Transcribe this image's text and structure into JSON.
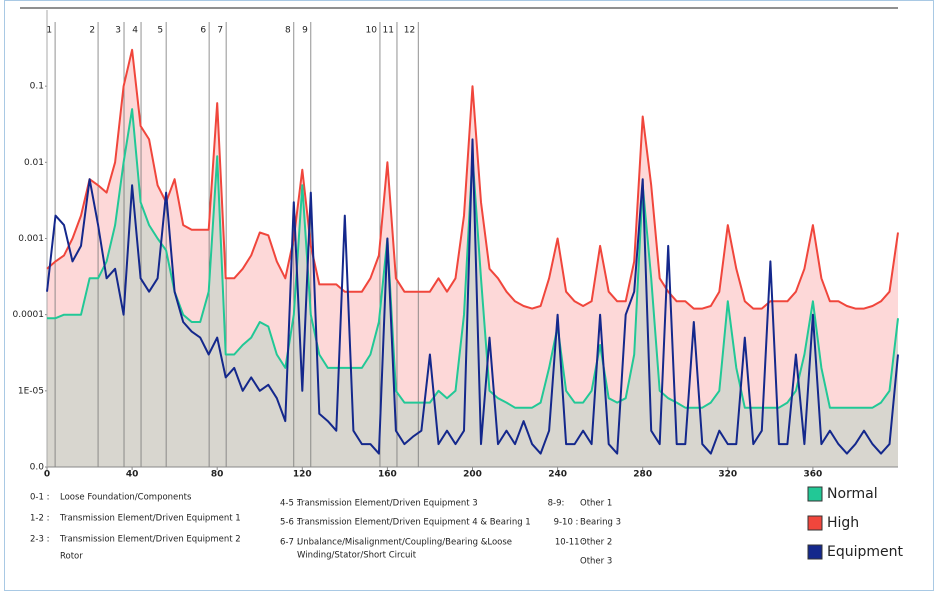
{
  "chart_data": {
    "type": "line",
    "log_y": true,
    "grid": false,
    "legend_position": "lower right",
    "x": [
      0,
      4,
      8,
      12,
      16,
      20,
      24,
      28,
      32,
      36,
      40,
      44,
      48,
      52,
      56,
      60,
      64,
      68,
      72,
      76,
      80,
      84,
      88,
      92,
      96,
      100,
      104,
      108,
      112,
      116,
      120,
      124,
      128,
      132,
      136,
      140,
      144,
      148,
      152,
      156,
      160,
      164,
      168,
      172,
      176,
      180,
      184,
      188,
      192,
      196,
      200,
      204,
      208,
      212,
      216,
      220,
      224,
      228,
      232,
      236,
      240,
      244,
      248,
      252,
      256,
      260,
      264,
      268,
      272,
      276,
      280,
      284,
      288,
      292,
      296,
      300,
      304,
      308,
      312,
      316,
      320,
      324,
      328,
      332,
      336,
      340,
      344,
      348,
      352,
      356,
      360,
      364,
      368,
      372,
      376,
      380,
      384,
      388,
      392,
      396,
      400
    ],
    "xlim": [
      0,
      400
    ],
    "xticks": [
      0,
      40,
      80,
      120,
      160,
      200,
      240,
      280,
      320,
      360
    ],
    "ylim": [
      1e-06,
      1
    ],
    "yticks": [
      {
        "value": 1e-06,
        "label": "0.0"
      },
      {
        "value": 1e-05,
        "label": "1E-05"
      },
      0.0001,
      0.001,
      0.01,
      0.1
    ],
    "series": [
      {
        "name": "High",
        "color": "#f0463c",
        "fill": "#fdd8d8",
        "values": [
          0.0004,
          0.0005,
          0.0006,
          0.001,
          0.002,
          0.006,
          0.005,
          0.004,
          0.01,
          0.1,
          0.3,
          0.03,
          0.02,
          0.005,
          0.003,
          0.006,
          0.0015,
          0.0013,
          0.0013,
          0.0013,
          0.06,
          0.0003,
          0.0003,
          0.0004,
          0.0006,
          0.0012,
          0.0011,
          0.0005,
          0.0003,
          0.001,
          0.008,
          0.0008,
          0.00025,
          0.00025,
          0.00025,
          0.0002,
          0.0002,
          0.0002,
          0.0003,
          0.0006,
          0.01,
          0.0003,
          0.0002,
          0.0002,
          0.0002,
          0.0002,
          0.0003,
          0.0002,
          0.0003,
          0.002,
          0.1,
          0.003,
          0.0004,
          0.0003,
          0.0002,
          0.00015,
          0.00013,
          0.00012,
          0.00013,
          0.0003,
          0.001,
          0.0002,
          0.00015,
          0.00013,
          0.00015,
          0.0008,
          0.0002,
          0.00015,
          0.00015,
          0.0005,
          0.04,
          0.005,
          0.0003,
          0.0002,
          0.00015,
          0.00015,
          0.00012,
          0.00012,
          0.00013,
          0.0002,
          0.0015,
          0.0004,
          0.00015,
          0.00012,
          0.00012,
          0.00015,
          0.00015,
          0.00015,
          0.0002,
          0.0004,
          0.0015,
          0.0003,
          0.00015,
          0.00015,
          0.00013,
          0.00012,
          0.00012,
          0.00013,
          0.00015,
          0.0002,
          0.0012
        ]
      },
      {
        "name": "Normal",
        "color": "#22c896",
        "fill": "#d8d6cf",
        "values": [
          9e-05,
          9e-05,
          0.0001,
          0.0001,
          0.0001,
          0.0003,
          0.0003,
          0.0005,
          0.0015,
          0.01,
          0.05,
          0.003,
          0.0015,
          0.001,
          0.0007,
          0.0002,
          0.0001,
          8e-05,
          8e-05,
          0.0002,
          0.012,
          3e-05,
          3e-05,
          4e-05,
          5e-05,
          8e-05,
          7e-05,
          3e-05,
          2e-05,
          0.0001,
          0.005,
          0.0001,
          3e-05,
          2e-05,
          2e-05,
          2e-05,
          2e-05,
          2e-05,
          3e-05,
          8e-05,
          0.001,
          1e-05,
          7e-06,
          7e-06,
          7e-06,
          7e-06,
          1e-05,
          8e-06,
          1e-05,
          0.0001,
          0.012,
          0.0003,
          1e-05,
          8e-06,
          7e-06,
          6e-06,
          6e-06,
          6e-06,
          7e-06,
          2e-05,
          7e-05,
          1e-05,
          7e-06,
          7e-06,
          1e-05,
          4e-05,
          8e-06,
          7e-06,
          8e-06,
          3e-05,
          0.005,
          0.0003,
          1e-05,
          8e-06,
          7e-06,
          6e-06,
          6e-06,
          6e-06,
          7e-06,
          1e-05,
          0.00015,
          2e-05,
          6e-06,
          6e-06,
          6e-06,
          6e-06,
          6e-06,
          7e-06,
          1e-05,
          3e-05,
          0.00015,
          2e-05,
          6e-06,
          6e-06,
          6e-06,
          6e-06,
          6e-06,
          6e-06,
          7e-06,
          1e-05,
          9e-05
        ]
      },
      {
        "name": "Equipment",
        "color": "#14288c",
        "values": [
          0.0002,
          0.002,
          0.0015,
          0.0005,
          0.0008,
          0.006,
          0.0015,
          0.0003,
          0.0004,
          0.0001,
          0.005,
          0.0003,
          0.0002,
          0.0003,
          0.004,
          0.0002,
          8e-05,
          6e-05,
          5e-05,
          3e-05,
          5e-05,
          1.5e-05,
          2e-05,
          1e-05,
          1.5e-05,
          1e-05,
          1.2e-05,
          8e-06,
          4e-06,
          0.003,
          1e-05,
          0.004,
          5e-06,
          4e-06,
          3e-06,
          0.002,
          3e-06,
          2e-06,
          2e-06,
          1.5e-06,
          0.001,
          3e-06,
          2e-06,
          2.5e-06,
          3e-06,
          3e-05,
          2e-06,
          3e-06,
          2e-06,
          3e-06,
          0.02,
          2e-06,
          5e-05,
          2e-06,
          3e-06,
          2e-06,
          4e-06,
          2e-06,
          1.5e-06,
          3e-06,
          0.0001,
          2e-06,
          2e-06,
          3e-06,
          2e-06,
          0.0001,
          2e-06,
          1.5e-06,
          0.0001,
          0.0002,
          0.006,
          3e-06,
          2e-06,
          0.0008,
          2e-06,
          2e-06,
          8e-05,
          2e-06,
          1.5e-06,
          3e-06,
          2e-06,
          2e-06,
          5e-05,
          2e-06,
          3e-06,
          0.0005,
          2e-06,
          2e-06,
          3e-05,
          2e-06,
          0.0001,
          2e-06,
          3e-06,
          2e-06,
          1.5e-06,
          2e-06,
          3e-06,
          2e-06,
          1.5e-06,
          2e-06,
          3e-05
        ]
      }
    ],
    "markers": [
      {
        "label": "1",
        "x": 3.8
      },
      {
        "label": "2",
        "x": 24
      },
      {
        "label": "3",
        "x": 36.2
      },
      {
        "label": "4",
        "x": 44.2
      },
      {
        "label": "5",
        "x": 56
      },
      {
        "label": "6",
        "x": 76.2
      },
      {
        "label": "7",
        "x": 84.2
      },
      {
        "label": "8",
        "x": 116
      },
      {
        "label": "9",
        "x": 124
      },
      {
        "label": "10",
        "x": 156.5
      },
      {
        "label": "11",
        "x": 164.5
      },
      {
        "label": "12",
        "x": 174.5
      }
    ],
    "band_notes": [
      {
        "code": "0-1 :",
        "lines": [
          "Loose Foundation/Components"
        ]
      },
      {
        "code": "1-2 :",
        "lines": [
          "Transmission Element/Driven Equipment 1"
        ]
      },
      {
        "code": "2-3 :",
        "lines": [
          "Transmission Element/Driven Equipment 2",
          "Rotor"
        ]
      },
      {
        "code": "4-5 :",
        "lines": [
          "Transmission Element/Driven Equipment 3"
        ]
      },
      {
        "code": "5-6 :",
        "lines": [
          "Transmission Element/Driven Equipment 4 & Bearing 1"
        ]
      },
      {
        "code": "6-7 :",
        "lines": [
          "Unbalance/Misalignment/Coupling/Bearing &Loose",
          "Winding/Stator/Short Circuit"
        ]
      },
      {
        "code": "8-9:",
        "lines": [
          "Other 1"
        ]
      },
      {
        "code": "9-10 :",
        "lines": [
          "Bearing 3"
        ]
      },
      {
        "code": "10-11 :",
        "lines": [
          "Other 2"
        ]
      },
      {
        "lines": [
          "Other 3"
        ]
      }
    ]
  }
}
